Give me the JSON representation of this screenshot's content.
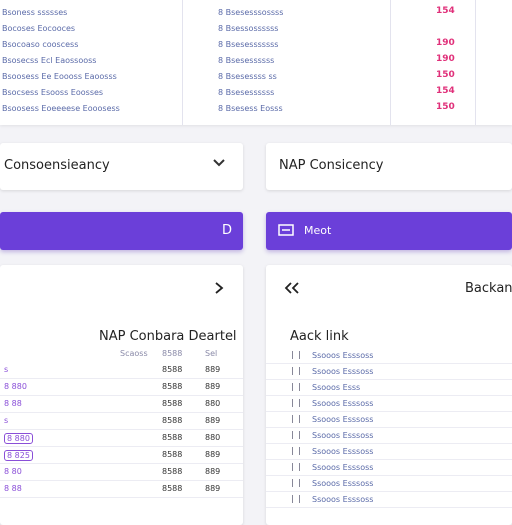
{
  "top_table": {
    "rows": [
      {
        "name": "Bsoness ssssses",
        "detail": "8 Bsesesssossss",
        "value": "154"
      },
      {
        "name": "Bocoses Eocooces",
        "detail": "8 Bsessossssss"
      },
      {
        "name": "Bsocoaso cooscess",
        "detail": "8 Bsesesssssss",
        "value": "190"
      },
      {
        "name": "Bsosecss Ecl Eaossooss",
        "detail": "8 Bsesessssss",
        "value": "190"
      },
      {
        "name": "Bsoosess Ee Eoooss Eaoosss",
        "detail": "8 Bsesessss  ss",
        "value": "150"
      },
      {
        "name": "Bsocsess Esooss Eoosses",
        "detail": "8 Bsesessssss",
        "value": "154"
      },
      {
        "name": "Bsoosess Eoeeeese Eooosess",
        "detail": "8 Bsesess Eosss",
        "value": "150"
      }
    ]
  },
  "cards": {
    "left": "Consoensieancy",
    "right": "NAP Consicency"
  },
  "buttons": {
    "left": "D",
    "right": "Meot"
  },
  "left_panel": {
    "header": "NAP Conbara Deartel",
    "columns": [
      "Scaoss",
      "8588",
      "Sel"
    ],
    "rows": [
      [
        "s",
        "8588",
        "889"
      ],
      [
        "8 880",
        "8588",
        "889"
      ],
      [
        "8 88",
        "8588",
        "880"
      ],
      [
        "s",
        "8588",
        "889"
      ],
      [
        "8 880",
        "8588",
        "880"
      ],
      [
        "8 825",
        "8588",
        "889"
      ],
      [
        "8 80",
        "8588",
        "889"
      ],
      [
        "8 88",
        "8588",
        "889"
      ]
    ]
  },
  "right_panel": {
    "title": "Backan",
    "header": "Aack link",
    "rows": [
      "Ssooos Esssoss",
      "Ssooos Esssoss",
      "Ssooos Esss",
      "Ssooos Esssoss",
      "Ssooos Esssoss",
      "Ssooos Esssoss",
      "Ssooos Esssoss",
      "Ssooos Esssoss",
      "Ssooos Esssoss",
      "Ssooos Esssoss"
    ]
  }
}
